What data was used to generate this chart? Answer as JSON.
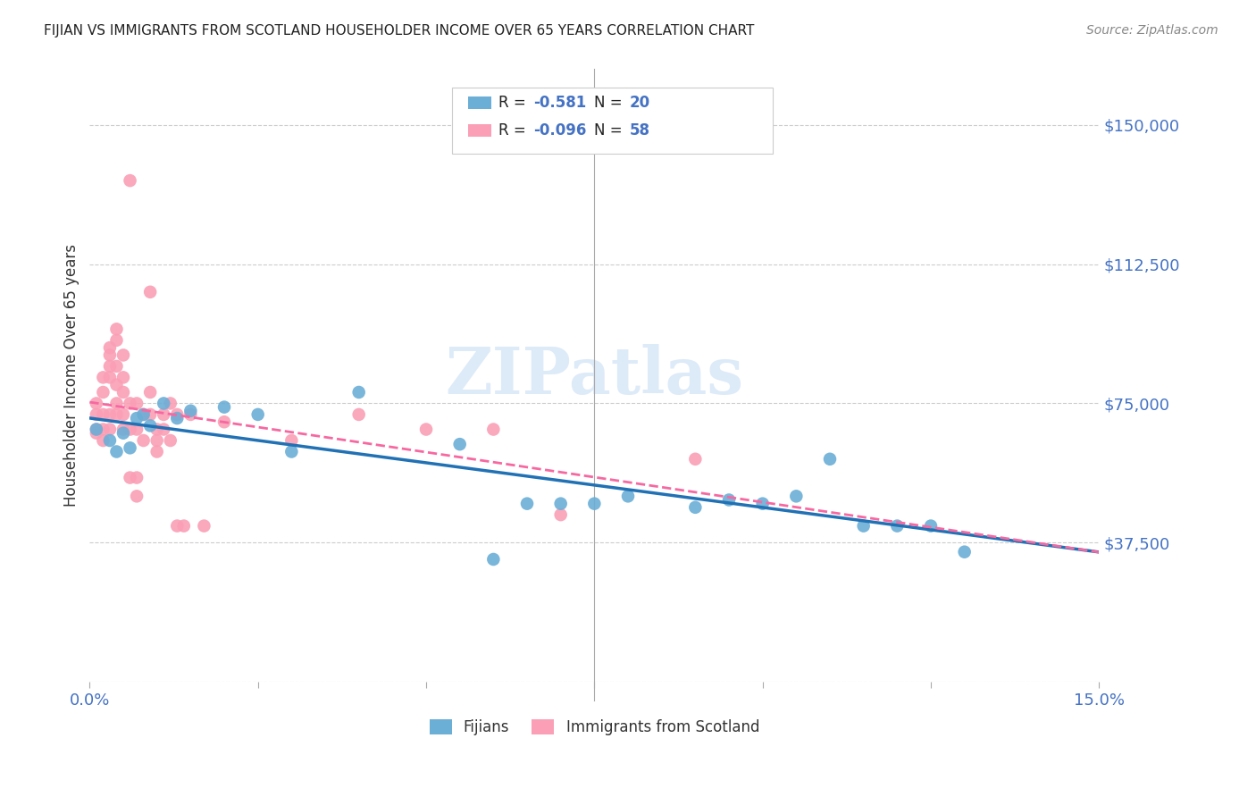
{
  "title": "FIJIAN VS IMMIGRANTS FROM SCOTLAND HOUSEHOLDER INCOME OVER 65 YEARS CORRELATION CHART",
  "source": "Source: ZipAtlas.com",
  "ylabel": "Householder Income Over 65 years",
  "watermark": "ZIPatlas",
  "xlim": [
    0.0,
    0.15
  ],
  "ylim": [
    0,
    165000
  ],
  "yticks": [
    0,
    37500,
    75000,
    112500,
    150000
  ],
  "ytick_labels": [
    "",
    "$37,500",
    "$75,000",
    "$112,500",
    "$150,000"
  ],
  "xticks": [
    0.0,
    0.025,
    0.05,
    0.075,
    0.1,
    0.125,
    0.15
  ],
  "color_fijian": "#6baed6",
  "color_scotland": "#fa9fb5",
  "color_fijian_line": "#2171b5",
  "color_scotland_line": "#f768a1",
  "background_color": "#ffffff",
  "grid_color": "#cccccc",
  "axis_color": "#4472c4",
  "title_color": "#222222",
  "source_color": "#888888",
  "label_color": "#333333",
  "fijian_points": [
    [
      0.001,
      68000
    ],
    [
      0.003,
      65000
    ],
    [
      0.004,
      62000
    ],
    [
      0.005,
      67000
    ],
    [
      0.006,
      63000
    ],
    [
      0.007,
      71000
    ],
    [
      0.008,
      72000
    ],
    [
      0.009,
      69000
    ],
    [
      0.011,
      75000
    ],
    [
      0.013,
      71000
    ],
    [
      0.015,
      73000
    ],
    [
      0.02,
      74000
    ],
    [
      0.025,
      72000
    ],
    [
      0.03,
      62000
    ],
    [
      0.04,
      78000
    ],
    [
      0.055,
      64000
    ],
    [
      0.06,
      33000
    ],
    [
      0.065,
      48000
    ],
    [
      0.07,
      48000
    ],
    [
      0.075,
      48000
    ],
    [
      0.08,
      50000
    ],
    [
      0.09,
      47000
    ],
    [
      0.095,
      49000
    ],
    [
      0.1,
      48000
    ],
    [
      0.105,
      50000
    ],
    [
      0.11,
      60000
    ],
    [
      0.115,
      42000
    ],
    [
      0.12,
      42000
    ],
    [
      0.125,
      42000
    ],
    [
      0.13,
      35000
    ]
  ],
  "scotland_points": [
    [
      0.001,
      72000
    ],
    [
      0.001,
      68000
    ],
    [
      0.001,
      75000
    ],
    [
      0.001,
      67000
    ],
    [
      0.002,
      78000
    ],
    [
      0.002,
      82000
    ],
    [
      0.002,
      72000
    ],
    [
      0.002,
      68000
    ],
    [
      0.002,
      65000
    ],
    [
      0.003,
      88000
    ],
    [
      0.003,
      85000
    ],
    [
      0.003,
      90000
    ],
    [
      0.003,
      82000
    ],
    [
      0.003,
      72000
    ],
    [
      0.003,
      68000
    ],
    [
      0.004,
      95000
    ],
    [
      0.004,
      92000
    ],
    [
      0.004,
      85000
    ],
    [
      0.004,
      80000
    ],
    [
      0.004,
      75000
    ],
    [
      0.004,
      72000
    ],
    [
      0.005,
      88000
    ],
    [
      0.005,
      82000
    ],
    [
      0.005,
      78000
    ],
    [
      0.005,
      72000
    ],
    [
      0.005,
      68000
    ],
    [
      0.006,
      135000
    ],
    [
      0.006,
      75000
    ],
    [
      0.006,
      68000
    ],
    [
      0.006,
      55000
    ],
    [
      0.007,
      75000
    ],
    [
      0.007,
      68000
    ],
    [
      0.007,
      55000
    ],
    [
      0.007,
      50000
    ],
    [
      0.008,
      72000
    ],
    [
      0.008,
      65000
    ],
    [
      0.009,
      105000
    ],
    [
      0.009,
      78000
    ],
    [
      0.009,
      72000
    ],
    [
      0.01,
      68000
    ],
    [
      0.01,
      65000
    ],
    [
      0.01,
      62000
    ],
    [
      0.011,
      72000
    ],
    [
      0.011,
      68000
    ],
    [
      0.012,
      75000
    ],
    [
      0.012,
      65000
    ],
    [
      0.013,
      72000
    ],
    [
      0.013,
      42000
    ],
    [
      0.014,
      42000
    ],
    [
      0.015,
      72000
    ],
    [
      0.017,
      42000
    ],
    [
      0.02,
      70000
    ],
    [
      0.03,
      65000
    ],
    [
      0.04,
      72000
    ],
    [
      0.05,
      68000
    ],
    [
      0.06,
      68000
    ],
    [
      0.07,
      45000
    ],
    [
      0.09,
      60000
    ]
  ]
}
